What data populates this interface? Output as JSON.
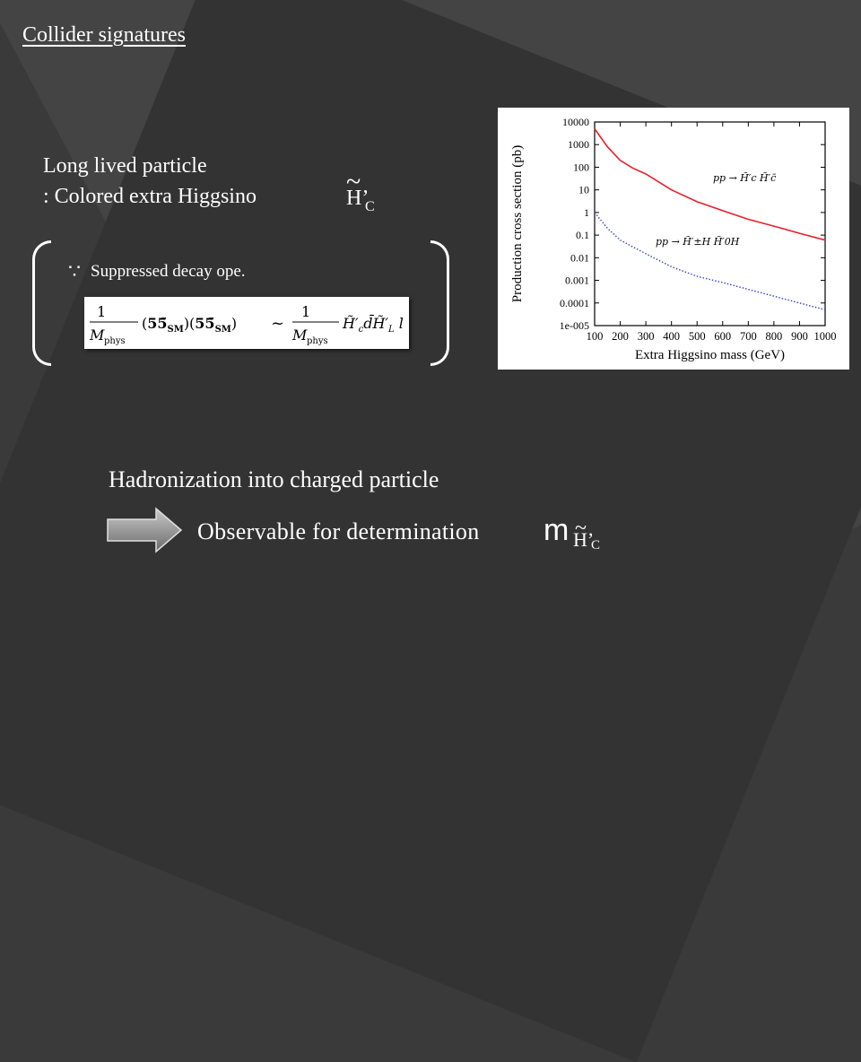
{
  "slide": {
    "heading": "Collider signatures",
    "llp_line1": "Long lived particle",
    "llp_line2": ": Colored extra Higgsino",
    "symbol_H": "H’",
    "symbol_tilde": "~",
    "symbol_c": "C",
    "because": "∵",
    "decay_text": "Suppressed decay ope.",
    "formula": {
      "num_left": "1",
      "den_left": "M",
      "den_left_sub": "phys",
      "middle": "(55̄",
      "left_factor": "(5 5̄ SM)(5 5̄ SM)",
      "sim": "~",
      "num_right": "1",
      "den_right": "M",
      "den_right_sub": "phys",
      "tail": "H̃′c d H̃′L l"
    },
    "hadronization": "Hadronization into charged particle",
    "observable": "Observable for determination",
    "m_letter": "m"
  },
  "chart_data": {
    "type": "line",
    "xlabel": "Extra Higgsino mass (GeV)",
    "ylabel": "Production cross section (pb)",
    "x_ticks": [
      "100",
      "200",
      "300",
      "400",
      "500",
      "600",
      "700",
      "800",
      "900",
      "1000"
    ],
    "y_ticks": [
      "10000",
      "1000",
      "100",
      "10",
      "1",
      "0.1",
      "0.01",
      "0.001",
      "0.0001",
      "1e-005"
    ],
    "xlim": [
      100,
      1000
    ],
    "ylim": [
      1e-05,
      10000
    ],
    "yscale": "log",
    "series": [
      {
        "name": "pp → H̃′c H̃′c̄",
        "color": "#e8202a",
        "style": "solid",
        "x": [
          100,
          150,
          200,
          250,
          300,
          400,
          500,
          600,
          700,
          800,
          900,
          1000
        ],
        "y": [
          5000,
          800,
          200,
          90,
          50,
          10,
          3,
          1.2,
          0.5,
          0.25,
          0.12,
          0.06
        ]
      },
      {
        "name": "pp → H̃′±H H̃′0H",
        "color": "#3344cc",
        "style": "dotted",
        "x": [
          100,
          150,
          200,
          250,
          300,
          400,
          500,
          600,
          700,
          800,
          900,
          1000
        ],
        "y": [
          1,
          0.2,
          0.06,
          0.03,
          0.015,
          0.004,
          0.0015,
          0.0008,
          0.0004,
          0.0002,
          0.0001,
          5e-05
        ]
      }
    ],
    "legend_labels": [
      "pp → H̃′c H̃′c̄",
      "pp → H̃′±H H̃′0H"
    ]
  }
}
